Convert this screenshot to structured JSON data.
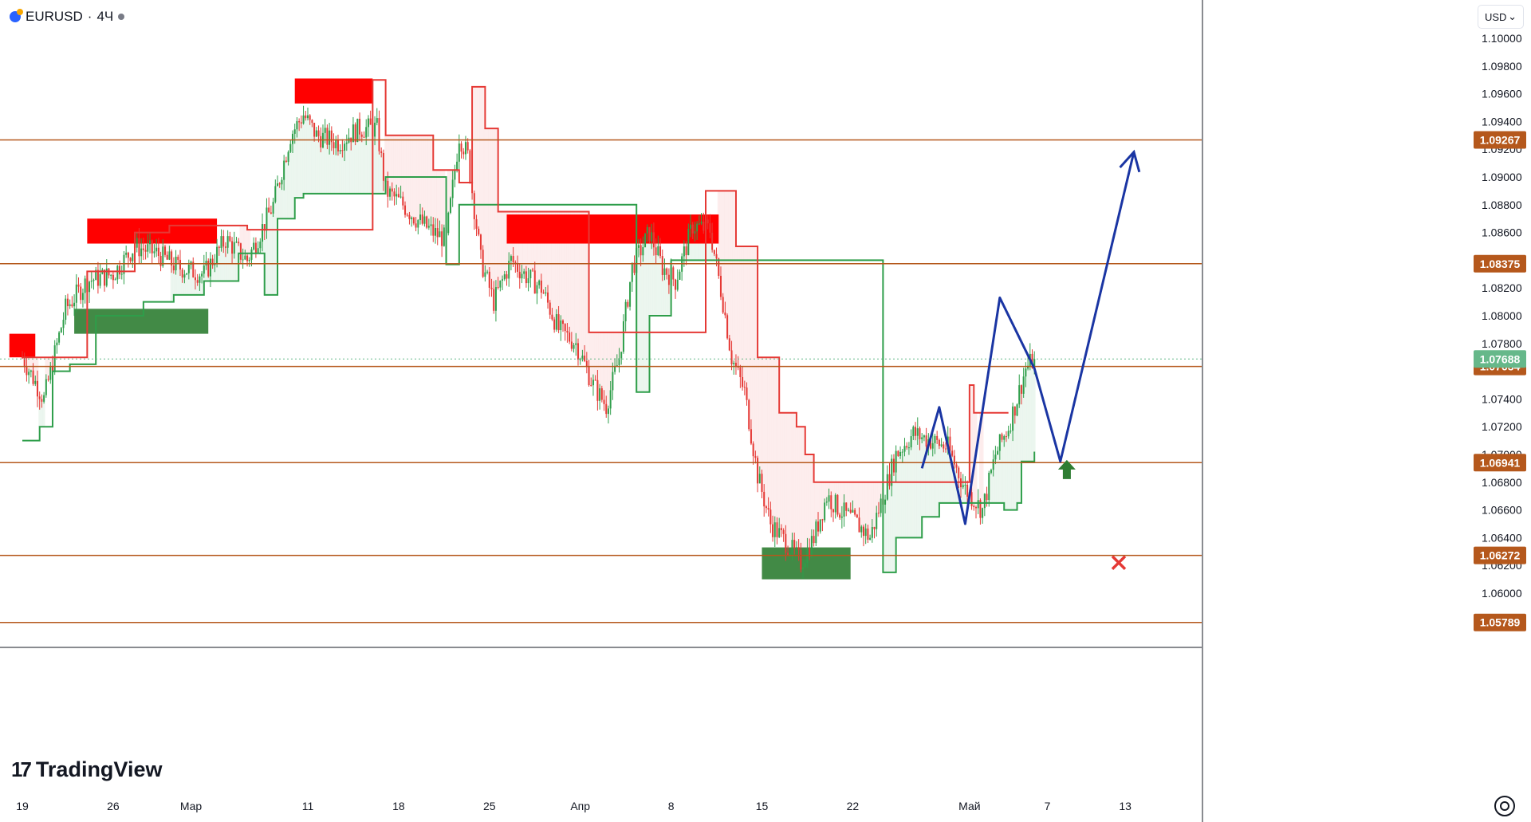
{
  "header": {
    "symbol": "EURUSD",
    "separator": "·",
    "timeframe": "4Ч"
  },
  "currency_selector": {
    "value": "USD",
    "arrow": "⌄"
  },
  "branding": {
    "name": "TradingView"
  },
  "colors": {
    "up": "#2e9e4a",
    "down": "#e53935",
    "level": "#b5581c",
    "zone_red": "#ff0000",
    "zone_green": "#2e7d32",
    "projection": "#1a35a3",
    "price_tag": "#66b88a"
  },
  "chart_data": {
    "type": "candlestick",
    "y_axis": {
      "range": [
        1.0558,
        1.1015
      ],
      "ticks": [
        "1.10000",
        "1.09800",
        "1.09600",
        "1.09400",
        "1.09200",
        "1.09000",
        "1.08800",
        "1.08600",
        "1.08400",
        "1.08200",
        "1.08000",
        "1.07800",
        "1.07600",
        "1.07400",
        "1.07200",
        "1.07000",
        "1.06800",
        "1.06600",
        "1.06400",
        "1.06200",
        "1.06000"
      ]
    },
    "x_axis": {
      "ticks": [
        {
          "label": "19",
          "bar": 0
        },
        {
          "label": "26",
          "bar": 42
        },
        {
          "label": "Мар",
          "bar": 78
        },
        {
          "label": "11",
          "bar": 132
        },
        {
          "label": "18",
          "bar": 174
        },
        {
          "label": "25",
          "bar": 216
        },
        {
          "label": "Апр",
          "bar": 258
        },
        {
          "label": "8",
          "bar": 300
        },
        {
          "label": "15",
          "bar": 342
        },
        {
          "label": "22",
          "bar": 384
        },
        {
          "label": "Май",
          "bar": 438
        },
        {
          "label": "7",
          "bar": 474
        },
        {
          "label": "13",
          "bar": 510
        }
      ],
      "last_bar": 468
    },
    "levels": [
      {
        "value": 1.09267,
        "label": "1.09267",
        "callout": "1.09267",
        "callout_color": "#131722"
      },
      {
        "value": 1.08375,
        "label": "1.08375",
        "callout": "1.08375",
        "callout_color": "#131722"
      },
      {
        "value": 1.07634,
        "label": "1.07634",
        "callout": "",
        "callout_color": ""
      },
      {
        "value": 1.06941,
        "label": "1.06941",
        "callout": "1.06941",
        "callout_color": "#2e9e4a"
      },
      {
        "value": 1.06272,
        "label": "1.06272",
        "callout": "1.06272",
        "callout_color": "#e53935"
      },
      {
        "value": 1.05789,
        "label": "1.05789",
        "callout": "",
        "callout_color": ""
      }
    ],
    "last_price": {
      "value": 1.07688,
      "label": "1.07688"
    },
    "zones": [
      {
        "color": "red",
        "x0": -6,
        "x1": 6,
        "y0": 1.077,
        "y1": 1.0787
      },
      {
        "color": "red",
        "x0": 30,
        "x1": 90,
        "y0": 1.0852,
        "y1": 1.087
      },
      {
        "color": "red",
        "x0": 126,
        "x1": 162,
        "y0": 1.0953,
        "y1": 1.0971
      },
      {
        "color": "red",
        "x0": 224,
        "x1": 322,
        "y0": 1.0852,
        "y1": 1.0873
      },
      {
        "color": "green",
        "x0": 24,
        "x1": 86,
        "y0": 1.0787,
        "y1": 1.0805
      },
      {
        "color": "green",
        "x0": 342,
        "x1": 383,
        "y0": 1.061,
        "y1": 1.0633
      }
    ],
    "ohlc_anchors": [
      [
        0,
        1.077
      ],
      [
        10,
        1.074
      ],
      [
        20,
        1.0805
      ],
      [
        30,
        1.0825
      ],
      [
        42,
        1.083
      ],
      [
        52,
        1.085
      ],
      [
        62,
        1.0845
      ],
      [
        72,
        1.0835
      ],
      [
        84,
        1.083
      ],
      [
        94,
        1.0855
      ],
      [
        104,
        1.084
      ],
      [
        116,
        1.088
      ],
      [
        124,
        1.093
      ],
      [
        130,
        1.0945
      ],
      [
        136,
        1.093
      ],
      [
        146,
        1.0925
      ],
      [
        156,
        1.0935
      ],
      [
        164,
        1.0935
      ],
      [
        168,
        1.089
      ],
      [
        176,
        1.088
      ],
      [
        182,
        1.087
      ],
      [
        190,
        1.086
      ],
      [
        196,
        1.0855
      ],
      [
        202,
        1.093
      ],
      [
        206,
        1.0915
      ],
      [
        212,
        1.084
      ],
      [
        218,
        1.081
      ],
      [
        226,
        1.084
      ],
      [
        232,
        1.083
      ],
      [
        240,
        1.082
      ],
      [
        248,
        1.079
      ],
      [
        256,
        1.078
      ],
      [
        264,
        1.075
      ],
      [
        270,
        1.0735
      ],
      [
        276,
        1.077
      ],
      [
        282,
        1.0835
      ],
      [
        290,
        1.086
      ],
      [
        296,
        1.0835
      ],
      [
        302,
        1.0825
      ],
      [
        310,
        1.0865
      ],
      [
        318,
        1.0862
      ],
      [
        324,
        1.081
      ],
      [
        328,
        1.077
      ],
      [
        334,
        1.0745
      ],
      [
        340,
        1.0685
      ],
      [
        346,
        1.065
      ],
      [
        354,
        1.0635
      ],
      [
        360,
        1.0622
      ],
      [
        366,
        1.064
      ],
      [
        372,
        1.067
      ],
      [
        378,
        1.066
      ],
      [
        386,
        1.065
      ],
      [
        392,
        1.064
      ],
      [
        398,
        1.067
      ],
      [
        404,
        1.07
      ],
      [
        412,
        1.0715
      ],
      [
        420,
        1.071
      ],
      [
        428,
        1.0705
      ],
      [
        436,
        1.0675
      ],
      [
        444,
        1.066
      ],
      [
        450,
        1.07
      ],
      [
        456,
        1.072
      ],
      [
        460,
        1.074
      ],
      [
        464,
        1.0762
      ],
      [
        468,
        1.0769
      ]
    ],
    "support_step": [
      [
        0,
        1.071
      ],
      [
        8,
        1.072
      ],
      [
        14,
        1.076
      ],
      [
        22,
        1.0765
      ],
      [
        34,
        1.08
      ],
      [
        56,
        1.081
      ],
      [
        70,
        1.0815
      ],
      [
        84,
        1.0825
      ],
      [
        100,
        1.0845
      ],
      [
        112,
        1.0815
      ],
      [
        118,
        1.087
      ],
      [
        126,
        1.0885
      ],
      [
        130,
        1.0888
      ],
      [
        160,
        1.0888
      ],
      [
        168,
        1.09
      ],
      [
        196,
        1.0837
      ],
      [
        202,
        1.088
      ],
      [
        206,
        1.088
      ],
      [
        284,
        1.0745
      ],
      [
        290,
        1.08
      ],
      [
        300,
        1.084
      ],
      [
        340,
        1.084
      ],
      [
        398,
        1.0615
      ],
      [
        404,
        1.064
      ],
      [
        416,
        1.0655
      ],
      [
        424,
        1.0665
      ],
      [
        454,
        1.066
      ],
      [
        460,
        1.0665
      ],
      [
        462,
        1.0695
      ],
      [
        468,
        1.0702
      ]
    ],
    "resistance_step": [
      [
        0,
        1.077
      ],
      [
        20,
        1.077
      ],
      [
        30,
        1.0832
      ],
      [
        52,
        1.086
      ],
      [
        68,
        1.0865
      ],
      [
        90,
        1.0865
      ],
      [
        104,
        1.0862
      ],
      [
        162,
        1.097
      ],
      [
        168,
        1.093
      ],
      [
        180,
        1.093
      ],
      [
        190,
        1.0905
      ],
      [
        202,
        1.0896
      ],
      [
        208,
        1.0965
      ],
      [
        214,
        1.0935
      ],
      [
        220,
        1.0875
      ],
      [
        262,
        1.0788
      ],
      [
        278,
        1.0788
      ],
      [
        316,
        1.089
      ],
      [
        324,
        1.089
      ],
      [
        330,
        1.085
      ],
      [
        340,
        1.077
      ],
      [
        350,
        1.073
      ],
      [
        358,
        1.072
      ],
      [
        362,
        1.07
      ],
      [
        366,
        1.068
      ],
      [
        402,
        1.068
      ],
      [
        438,
        1.075
      ],
      [
        440,
        1.073
      ],
      [
        456,
        1.073
      ]
    ],
    "projection_path": [
      [
        416,
        1.069
      ],
      [
        424,
        1.0734
      ],
      [
        436,
        1.065
      ],
      [
        452,
        1.0813
      ],
      [
        468,
        1.0762
      ],
      [
        480,
        1.0695
      ],
      [
        514,
        1.0918
      ]
    ],
    "markers": [
      {
        "type": "up-arrow",
        "bar": 483,
        "value": 1.0688,
        "color": "#2e7d32"
      },
      {
        "type": "cross",
        "bar": 507,
        "value": 1.0622,
        "color": "#e53935"
      }
    ]
  }
}
